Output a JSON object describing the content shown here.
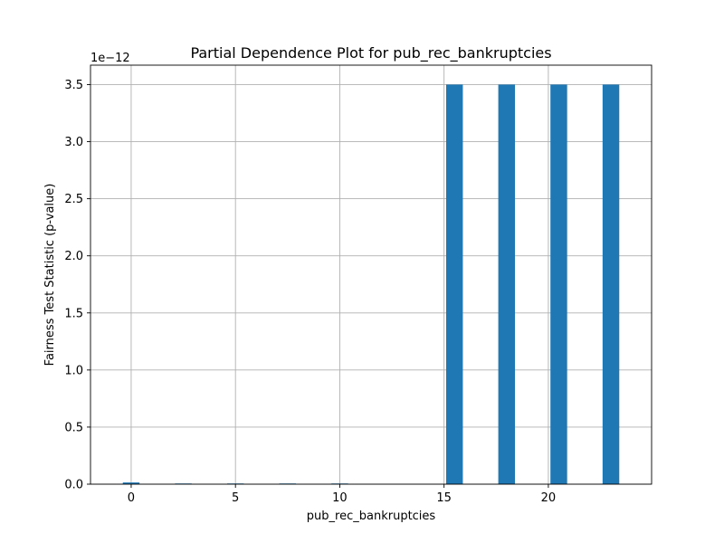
{
  "chart_data": {
    "type": "bar",
    "title": "Partial Dependence Plot for pub_rec_bankruptcies",
    "xlabel": "pub_rec_bankruptcies",
    "ylabel": "Fairness Test Statistic (p-value)",
    "y_offset_text": "1e−12",
    "x": [
      0,
      2.5,
      5,
      7.5,
      10,
      15.5,
      18,
      20.5,
      23
    ],
    "values": [
      1.5e-14,
      6e-15,
      6e-15,
      6e-15,
      6e-15,
      3.5e-12,
      3.5e-12,
      3.5e-12,
      3.5e-12
    ],
    "bar_width": 0.8,
    "xlim": [
      -1.95,
      24.95
    ],
    "ylim": [
      0,
      3.67e-12
    ],
    "xticks": [
      0,
      5,
      10,
      15,
      20
    ],
    "xtick_labels": [
      "0",
      "5",
      "10",
      "15",
      "20"
    ],
    "yticks": [
      0,
      5e-13,
      1e-12,
      1.5e-12,
      2e-12,
      2.5e-12,
      3e-12,
      3.5e-12
    ],
    "ytick_labels": [
      "0.0",
      "0.5",
      "1.0",
      "1.5",
      "2.0",
      "2.5",
      "3.0",
      "3.5"
    ],
    "grid": true,
    "colors": {
      "bar": "#1f77b4"
    }
  }
}
